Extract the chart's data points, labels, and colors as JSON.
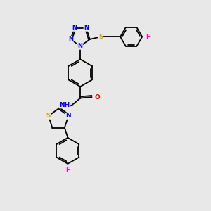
{
  "background_color": "#e8e8e8",
  "bond_color": "#000000",
  "atom_colors": {
    "N": "#0000ff",
    "S": "#ccaa00",
    "O": "#ff0000",
    "F": "#ff00aa",
    "H": "#888888",
    "C": "#000000"
  }
}
